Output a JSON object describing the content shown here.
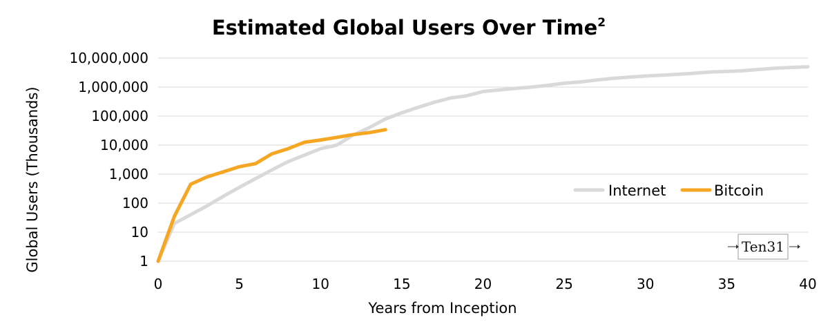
{
  "chart_data": {
    "type": "line",
    "title": "Estimated Global Users Over Time",
    "title_superscript": "2",
    "xlabel": "Years from Inception",
    "ylabel": "Global Users (Thousands)",
    "x_scale": "linear",
    "y_scale": "log",
    "xlim": [
      0,
      40
    ],
    "ylim": [
      1,
      10000000
    ],
    "x_ticks": [
      0,
      5,
      10,
      15,
      20,
      25,
      30,
      35,
      40
    ],
    "x_tick_labels": [
      "0",
      "5",
      "10",
      "15",
      "20",
      "25",
      "30",
      "35",
      "40"
    ],
    "y_ticks": [
      1,
      10,
      100,
      1000,
      10000,
      100000,
      1000000,
      10000000
    ],
    "y_tick_labels": [
      "1",
      "10",
      "100",
      "1,000",
      "10,000",
      "100,000",
      "1,000,000",
      "10,000,000"
    ],
    "grid": true,
    "legend_position": "right",
    "series": [
      {
        "name": "Internet",
        "color": "#d9d9d9",
        "x": [
          0,
          1,
          2,
          3,
          4,
          5,
          6,
          7,
          8,
          9,
          10,
          11,
          12,
          13,
          14,
          15,
          16,
          17,
          18,
          19,
          20,
          21,
          22,
          23,
          24,
          25,
          26,
          27,
          28,
          29,
          30,
          31,
          32,
          33,
          34,
          35,
          36,
          37,
          38,
          39,
          40
        ],
        "y": [
          1,
          20,
          40,
          80,
          170,
          350,
          700,
          1400,
          2700,
          4500,
          7500,
          10000,
          22000,
          40000,
          80000,
          130000,
          200000,
          300000,
          420000,
          500000,
          700000,
          800000,
          900000,
          1000000,
          1150000,
          1350000,
          1500000,
          1750000,
          2000000,
          2200000,
          2400000,
          2550000,
          2750000,
          3000000,
          3300000,
          3450000,
          3650000,
          4050000,
          4500000,
          4750000,
          5000000
        ]
      },
      {
        "name": "Bitcoin",
        "color": "#f5a623",
        "x": [
          0,
          1,
          2,
          3,
          4,
          5,
          6,
          7,
          8,
          9,
          10,
          11,
          12,
          13,
          14
        ],
        "y": [
          1,
          35,
          450,
          800,
          1200,
          1800,
          2300,
          5000,
          7500,
          12500,
          15000,
          18500,
          23000,
          27000,
          34000
        ]
      }
    ]
  },
  "logo": {
    "text": "Ten31"
  }
}
